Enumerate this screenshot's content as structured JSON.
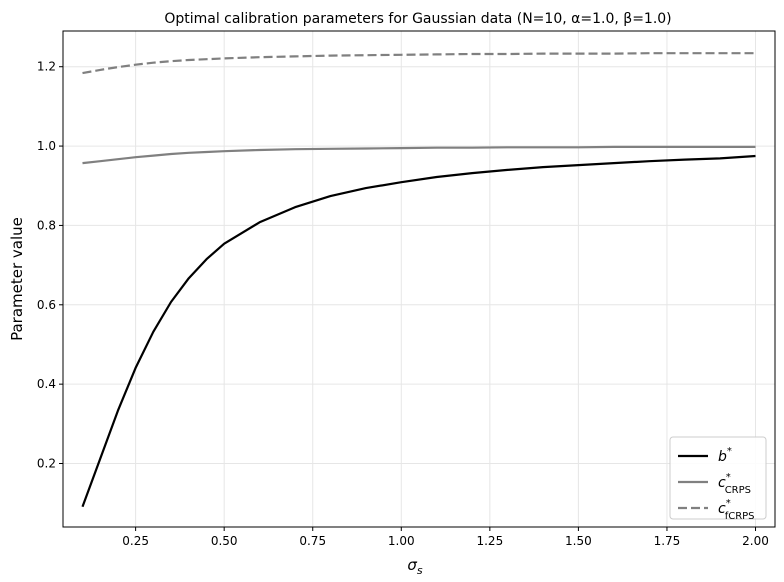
{
  "chart_data": {
    "type": "line",
    "title": "Optimal calibration parameters for Gaussian data (N=10, α=1.0, β=1.0)",
    "xlabel": "σ",
    "xlabel_sub": "s",
    "ylabel": "Parameter value",
    "xlim": [
      0.045,
      2.055
    ],
    "ylim": [
      0.04,
      1.29
    ],
    "xticks": [
      0.25,
      0.5,
      0.75,
      1.0,
      1.25,
      1.5,
      1.75,
      2.0
    ],
    "xtick_labels": [
      "0.25",
      "0.50",
      "0.75",
      "1.00",
      "1.25",
      "1.50",
      "1.75",
      "2.00"
    ],
    "yticks": [
      0.2,
      0.4,
      0.6,
      0.8,
      1.0,
      1.2
    ],
    "ytick_labels": [
      "0.2",
      "0.4",
      "0.6",
      "0.8",
      "1.0",
      "1.2"
    ],
    "grid": true,
    "legend_position": "lower-right",
    "x": [
      0.1,
      0.15,
      0.2,
      0.25,
      0.3,
      0.35,
      0.4,
      0.45,
      0.5,
      0.6,
      0.7,
      0.8,
      0.9,
      1.0,
      1.1,
      1.2,
      1.3,
      1.4,
      1.5,
      1.6,
      1.7,
      1.8,
      1.9,
      2.0
    ],
    "series": [
      {
        "legend_main": "b",
        "legend_sup": "*",
        "legend_sub": "",
        "color": "#000000",
        "dash": "",
        "values": [
          0.091,
          0.212,
          0.333,
          0.441,
          0.532,
          0.607,
          0.667,
          0.715,
          0.754,
          0.808,
          0.846,
          0.874,
          0.894,
          0.909,
          0.922,
          0.932,
          0.94,
          0.947,
          0.952,
          0.957,
          0.962,
          0.966,
          0.969,
          0.975
        ]
      },
      {
        "legend_main": "c",
        "legend_sup": "*",
        "legend_sub": "CRPS",
        "color": "#808080",
        "dash": "",
        "values": [
          0.957,
          0.962,
          0.967,
          0.972,
          0.976,
          0.98,
          0.983,
          0.985,
          0.987,
          0.99,
          0.992,
          0.993,
          0.994,
          0.995,
          0.996,
          0.996,
          0.997,
          0.997,
          0.997,
          0.998,
          0.998,
          0.998,
          0.998,
          0.998
        ]
      },
      {
        "legend_main": "c",
        "legend_sup": "*",
        "legend_sub": "fCRPS",
        "color": "#808080",
        "dash": "9,4",
        "values": [
          1.184,
          1.192,
          1.199,
          1.205,
          1.21,
          1.214,
          1.217,
          1.219,
          1.221,
          1.224,
          1.226,
          1.228,
          1.229,
          1.23,
          1.231,
          1.232,
          1.232,
          1.233,
          1.233,
          1.233,
          1.234,
          1.234,
          1.234,
          1.234
        ]
      }
    ]
  }
}
